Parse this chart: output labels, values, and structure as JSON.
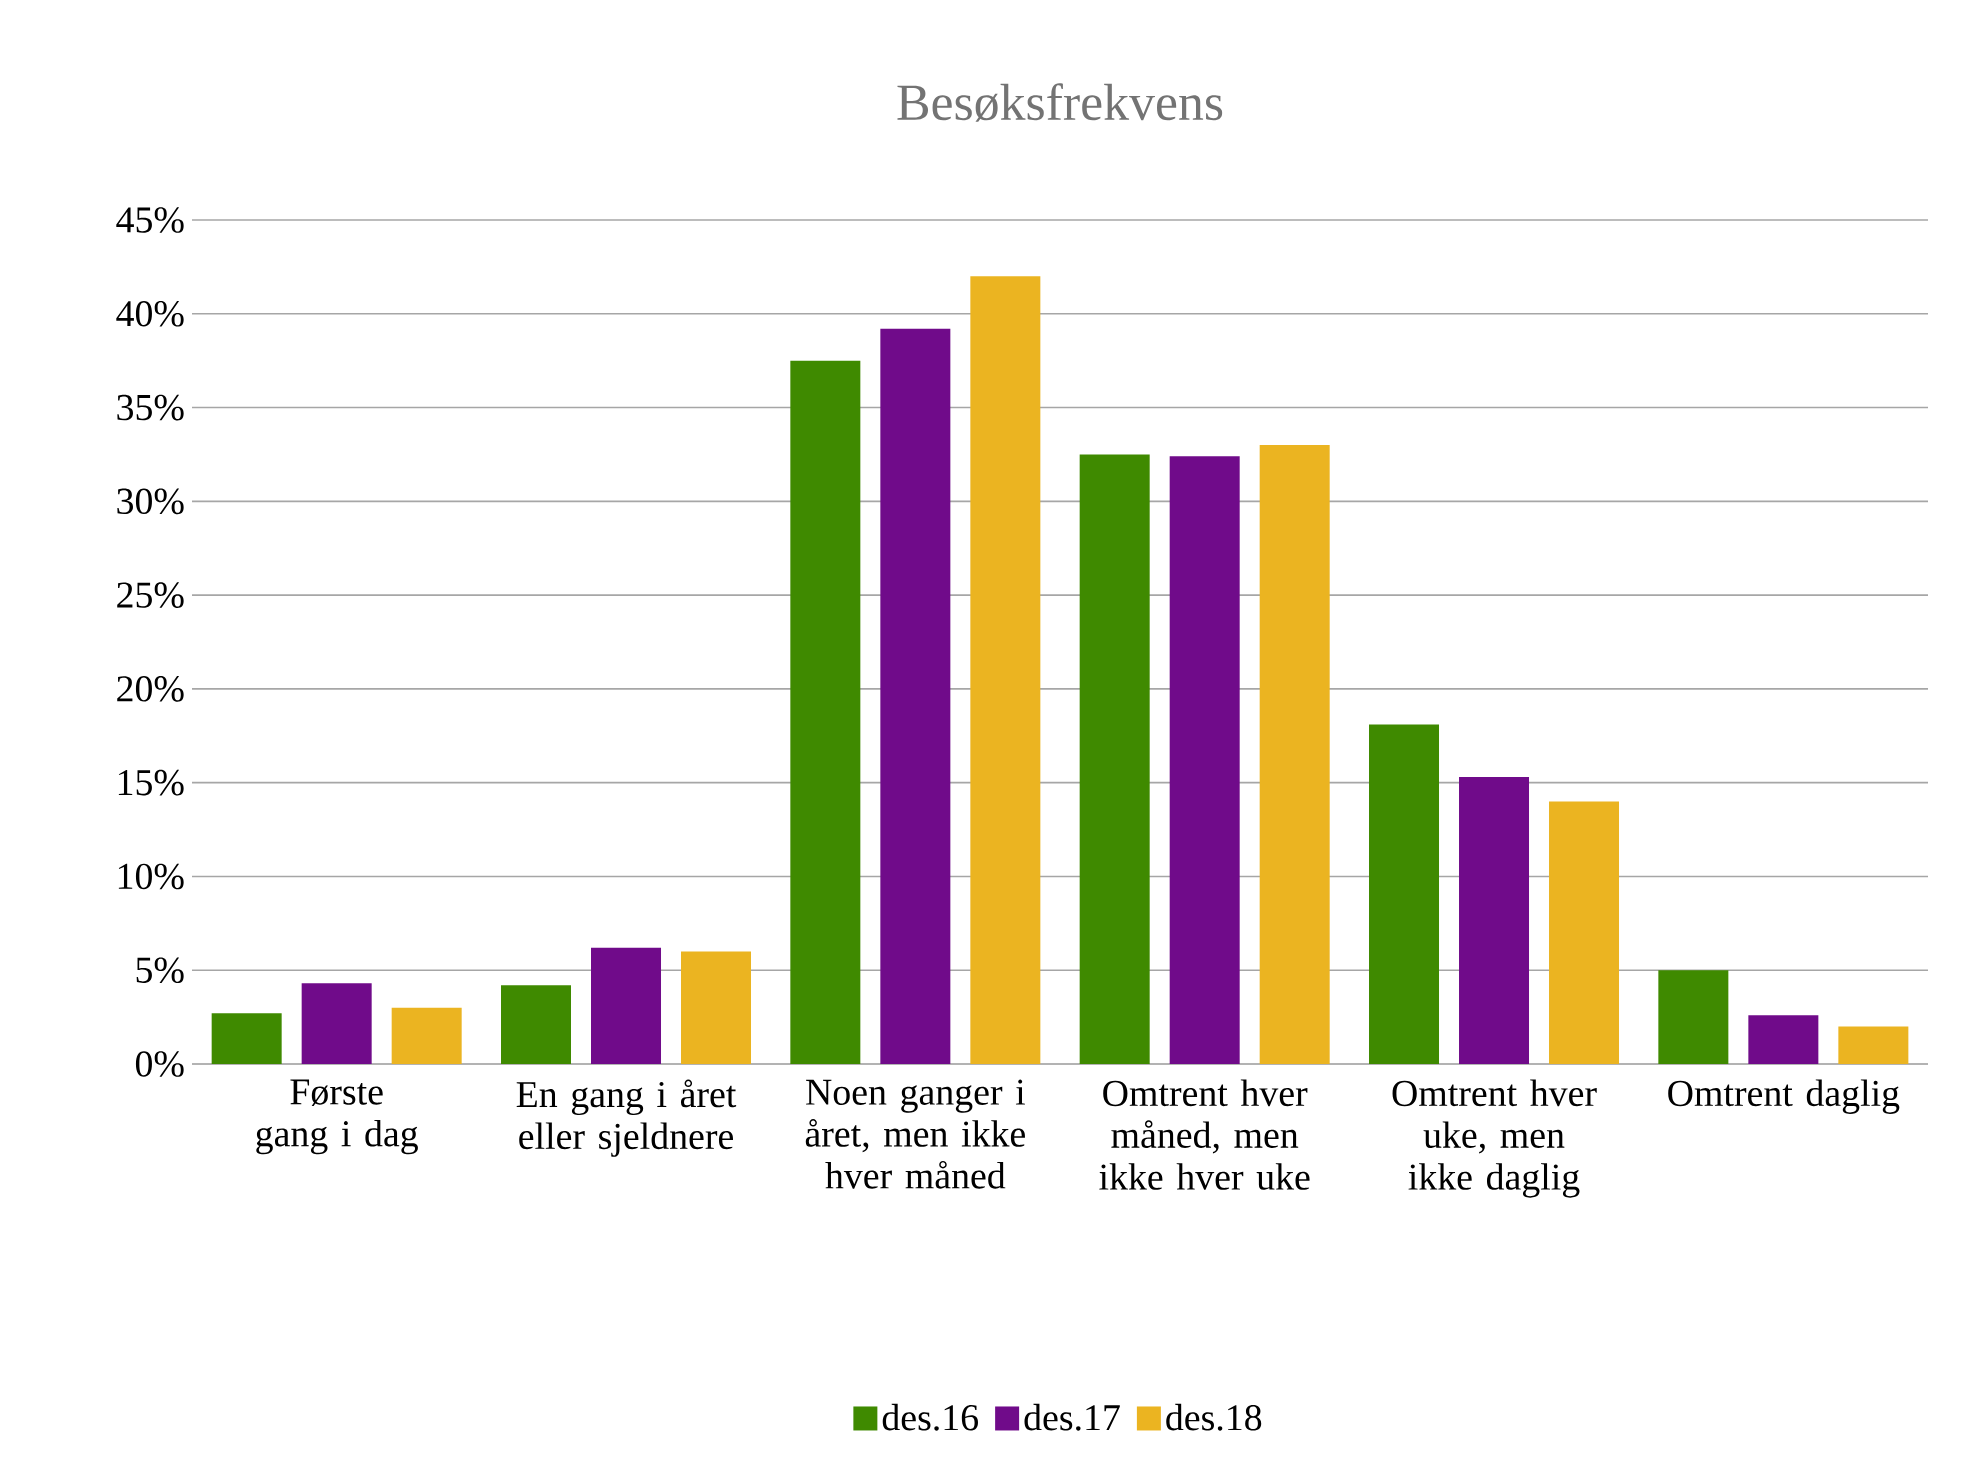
{
  "chart_data": {
    "type": "bar",
    "title": "Besøksfrekvens",
    "categories": [
      "Første gang i dag",
      "En gang i året eller sjeldnere",
      "Noen ganger i året, men ikke hver måned",
      "Omtrent hver måned, men ikke hver uke",
      "Omtrent hver uke, men ikke daglig",
      "Omtrent daglig"
    ],
    "series": [
      {
        "name": "des.16",
        "color": "#3f8a00",
        "values": [
          2.7,
          4.2,
          37.5,
          32.5,
          18.1,
          5.0
        ]
      },
      {
        "name": "des.17",
        "color": "#700b8a",
        "values": [
          4.3,
          6.2,
          39.2,
          32.4,
          15.3,
          2.6
        ]
      },
      {
        "name": "des.18",
        "color": "#ebb421",
        "values": [
          3.0,
          6.0,
          42.0,
          33.0,
          14.0,
          2.0
        ]
      }
    ],
    "ylim": [
      0,
      45
    ],
    "yticks": [
      {
        "value": 0,
        "label": "0%"
      },
      {
        "value": 5,
        "label": "5%"
      },
      {
        "value": 10,
        "label": "10%"
      },
      {
        "value": 15,
        "label": "15%"
      },
      {
        "value": 20,
        "label": "20%"
      },
      {
        "value": 25,
        "label": "25%"
      },
      {
        "value": 30,
        "label": "30%"
      },
      {
        "value": 35,
        "label": "35%"
      },
      {
        "value": 40,
        "label": "40%"
      },
      {
        "value": 45,
        "label": "45%"
      }
    ],
    "grid": "y",
    "legend": "bottom"
  }
}
